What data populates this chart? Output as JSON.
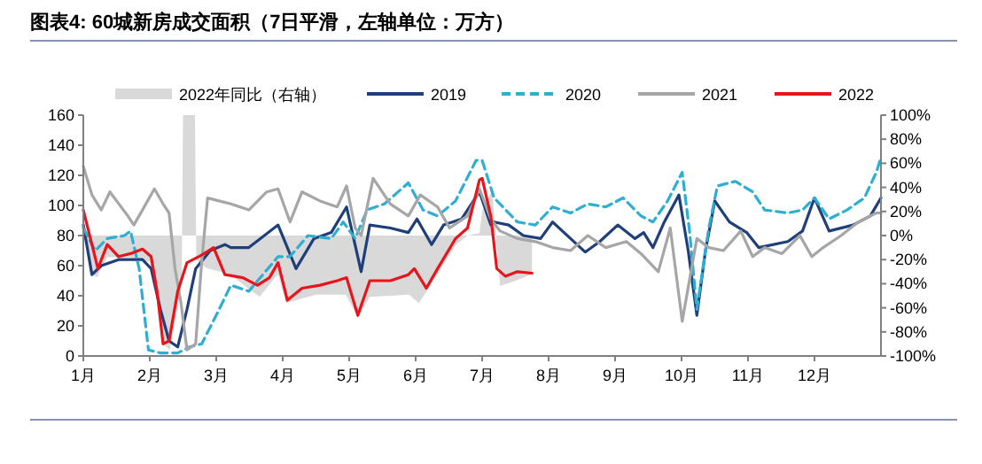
{
  "chart_data": {
    "type": "line",
    "title": "图表4:   60城新房成交面积（7日平滑，左轴单位：万方）",
    "xlim": [
      1,
      13
    ],
    "xticks": [
      {
        "value": 1,
        "label": "1月"
      },
      {
        "value": 2,
        "label": "2月"
      },
      {
        "value": 3,
        "label": "3月"
      },
      {
        "value": 4,
        "label": "4月"
      },
      {
        "value": 5,
        "label": "5月"
      },
      {
        "value": 6,
        "label": "6月"
      },
      {
        "value": 7,
        "label": "7月"
      },
      {
        "value": 8,
        "label": "8月"
      },
      {
        "value": 9,
        "label": "9月"
      },
      {
        "value": 10,
        "label": "10月"
      },
      {
        "value": 11,
        "label": "11月"
      },
      {
        "value": 12,
        "label": "12月"
      }
    ],
    "ylim": [
      0,
      160
    ],
    "yticks": [
      0,
      20,
      40,
      60,
      80,
      100,
      120,
      140,
      160
    ],
    "y2lim": [
      -100,
      100
    ],
    "y2ticks": [
      {
        "value": -100,
        "label": "-100%"
      },
      {
        "value": -80,
        "label": "-80%"
      },
      {
        "value": -60,
        "label": "-60%"
      },
      {
        "value": -40,
        "label": "-40%"
      },
      {
        "value": -20,
        "label": "-20%"
      },
      {
        "value": 0,
        "label": "0%"
      },
      {
        "value": 20,
        "label": "20%"
      },
      {
        "value": 40,
        "label": "40%"
      },
      {
        "value": 60,
        "label": "60%"
      },
      {
        "value": 80,
        "label": "80%"
      },
      {
        "value": 100,
        "label": "100%"
      }
    ],
    "grid": false,
    "legend": "top",
    "line_style": "solid",
    "marker": "none",
    "series": [
      {
        "name": "2022年同比（右轴）",
        "type": "area",
        "axis": "y2",
        "color": "#d9d9d9",
        "x": [
          1.0,
          1.1,
          1.2,
          1.36,
          1.7,
          2.0,
          2.1,
          2.2,
          2.3,
          2.42,
          2.48,
          2.5,
          2.68,
          2.7,
          2.85,
          3.2,
          3.65,
          3.93,
          4.05,
          4.5,
          4.95,
          5.13,
          5.31,
          5.9,
          6.05,
          6.33,
          6.6,
          6.78,
          6.96,
          7.0,
          7.15,
          7.27,
          7.53,
          7.75
        ],
        "values": [
          20,
          -30,
          -35,
          -18,
          -18,
          -22,
          -46,
          -90,
          -95,
          -60,
          -40,
          100,
          100,
          -20,
          -27,
          -32,
          -51,
          -32,
          -56,
          -49,
          -49,
          -68,
          -51,
          -49,
          -56,
          -32,
          -8,
          0,
          2,
          20,
          38,
          -42,
          -37,
          -32
        ]
      },
      {
        "name": "2019",
        "color": "#1f3f7a",
        "x": [
          1.0,
          1.13,
          1.27,
          1.53,
          1.89,
          2.02,
          2.16,
          2.29,
          2.42,
          2.56,
          2.69,
          2.91,
          3.13,
          3.22,
          3.49,
          3.93,
          4.2,
          4.47,
          4.73,
          4.96,
          5.18,
          5.31,
          5.62,
          5.89,
          6.02,
          6.24,
          6.42,
          6.69,
          6.96,
          7.13,
          7.18,
          7.4,
          7.62,
          7.88,
          8.06,
          8.33,
          8.55,
          8.77,
          9.04,
          9.3,
          9.43,
          9.57,
          9.74,
          9.96,
          10.1,
          10.23,
          10.36,
          10.5,
          10.72,
          10.98,
          11.16,
          11.6,
          11.82,
          12.0,
          12.22,
          12.58,
          12.84,
          13.0
        ],
        "values": [
          87,
          54,
          60,
          64,
          64,
          58,
          31,
          10,
          6,
          31,
          58,
          70,
          74,
          72,
          72,
          87,
          58,
          78,
          82,
          99,
          56,
          87,
          85,
          82,
          91,
          74,
          87,
          91,
          109,
          87,
          89,
          87,
          80,
          78,
          89,
          78,
          69,
          76,
          87,
          78,
          82,
          72,
          89,
          107,
          70,
          27,
          70,
          103,
          89,
          82,
          72,
          76,
          83,
          105,
          83,
          87,
          93,
          105
        ]
      },
      {
        "name": "2020",
        "color": "#2eaed1",
        "line_style": "dashed",
        "x": [
          1.0,
          1.18,
          1.36,
          1.62,
          1.71,
          1.84,
          1.98,
          2.16,
          2.42,
          2.6,
          2.78,
          3.0,
          3.22,
          3.49,
          3.93,
          4.11,
          4.38,
          4.73,
          4.91,
          5.09,
          5.27,
          5.53,
          5.89,
          6.11,
          6.33,
          6.6,
          6.91,
          7.0,
          7.18,
          7.53,
          7.8,
          8.06,
          8.33,
          8.59,
          8.86,
          9.12,
          9.39,
          9.57,
          9.79,
          10.01,
          10.12,
          10.23,
          10.41,
          10.54,
          10.81,
          11.07,
          11.25,
          11.6,
          11.82,
          12.0,
          12.22,
          12.49,
          12.75,
          12.93,
          13.0
        ],
        "values": [
          85,
          70,
          78,
          80,
          83,
          58,
          4,
          2,
          2,
          6,
          8,
          27,
          47,
          43,
          66,
          66,
          80,
          78,
          89,
          78,
          97,
          101,
          115,
          97,
          93,
          103,
          130,
          130,
          105,
          89,
          87,
          99,
          95,
          101,
          99,
          105,
          93,
          89,
          103,
          122,
          83,
          31,
          85,
          113,
          116,
          109,
          97,
          95,
          97,
          105,
          91,
          97,
          105,
          122,
          132
        ]
      },
      {
        "name": "2021",
        "color": "#a6a6a6",
        "x": [
          1.0,
          1.13,
          1.27,
          1.4,
          1.67,
          1.76,
          1.89,
          2.07,
          2.2,
          2.29,
          2.38,
          2.47,
          2.56,
          2.69,
          2.78,
          2.87,
          3.04,
          3.22,
          3.49,
          3.76,
          3.93,
          4.11,
          4.29,
          4.56,
          4.82,
          4.96,
          5.09,
          5.18,
          5.36,
          5.62,
          5.89,
          6.07,
          6.33,
          6.51,
          6.78,
          6.96,
          7.13,
          7.27,
          7.53,
          7.8,
          8.06,
          8.33,
          8.59,
          8.86,
          9.17,
          9.39,
          9.65,
          9.83,
          10.01,
          10.23,
          10.41,
          10.63,
          10.89,
          11.07,
          11.25,
          11.51,
          11.78,
          11.96,
          12.13,
          12.4,
          12.66,
          12.93,
          13.0
        ],
        "values": [
          126,
          107,
          97,
          109,
          93,
          87,
          97,
          111,
          101,
          95,
          58,
          35,
          4,
          8,
          62,
          105,
          103,
          101,
          97,
          109,
          111,
          89,
          109,
          103,
          99,
          113,
          85,
          80,
          118,
          101,
          93,
          107,
          99,
          85,
          93,
          111,
          91,
          83,
          78,
          76,
          72,
          70,
          80,
          72,
          76,
          68,
          56,
          85,
          23,
          78,
          72,
          70,
          83,
          66,
          72,
          68,
          80,
          66,
          72,
          80,
          89,
          95,
          95
        ]
      },
      {
        "name": "2022",
        "color": "#e8141b",
        "x": [
          1.0,
          1.22,
          1.36,
          1.53,
          1.71,
          1.89,
          2.02,
          2.11,
          2.2,
          2.29,
          2.42,
          2.56,
          2.78,
          2.96,
          3.13,
          3.4,
          3.62,
          3.8,
          3.93,
          4.07,
          4.29,
          4.56,
          4.82,
          4.96,
          5.13,
          5.31,
          5.62,
          5.89,
          5.98,
          6.16,
          6.33,
          6.6,
          6.78,
          6.96,
          7.0,
          7.13,
          7.22,
          7.35,
          7.53,
          7.75
        ],
        "values": [
          97,
          58,
          74,
          66,
          68,
          71,
          66,
          43,
          8,
          10,
          43,
          62,
          67,
          72,
          54,
          52,
          47,
          52,
          62,
          37,
          45,
          47,
          50,
          52,
          27,
          50,
          50,
          54,
          58,
          45,
          58,
          78,
          85,
          117,
          118,
          93,
          58,
          53,
          56,
          55
        ]
      }
    ]
  }
}
